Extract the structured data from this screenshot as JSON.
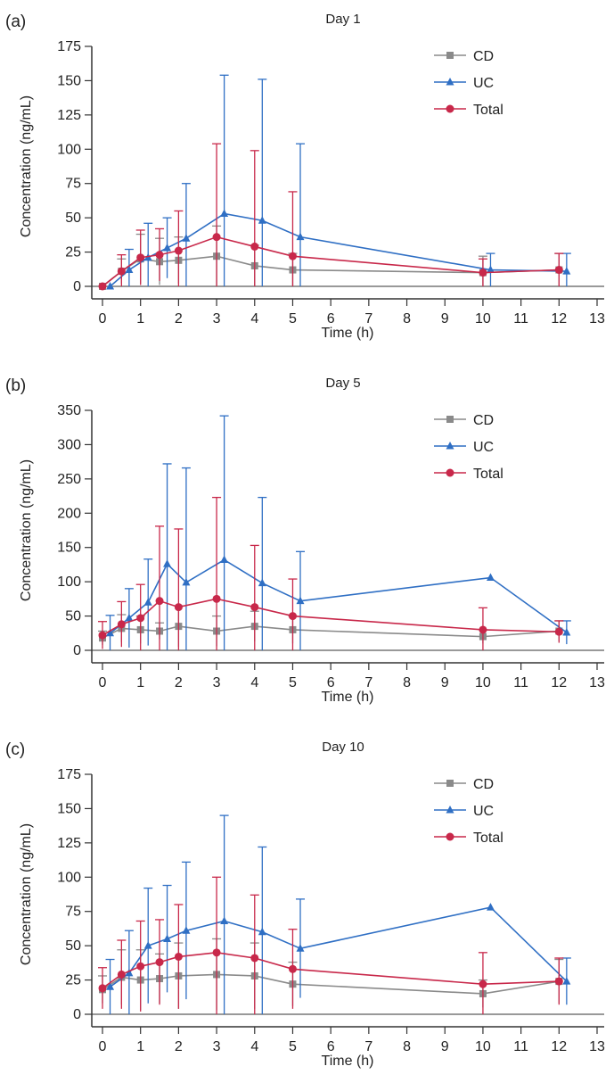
{
  "colors": {
    "CD": "#8a8a8a",
    "UC": "#2f6fc4",
    "Total": "#c8284a",
    "axis": "#333333"
  },
  "chart_data": [
    {
      "type": "line",
      "panel_label": "(a)",
      "title": "Day 1",
      "xlabel": "Time (h)",
      "ylabel": "Concentration (ng/mL)",
      "xlim": [
        -0.3,
        13.5
      ],
      "ylim": [
        0,
        175
      ],
      "xticks": [
        0,
        1,
        2,
        3,
        4,
        5,
        6,
        7,
        8,
        9,
        10,
        11,
        12,
        13
      ],
      "yticks": [
        0,
        25,
        50,
        75,
        100,
        125,
        150,
        175
      ],
      "legend_position": "top-right",
      "series": [
        {
          "name": "CD",
          "marker": "square",
          "x": [
            0,
            0.5,
            1,
            1.5,
            2,
            3,
            4,
            5,
            10,
            12
          ],
          "y": [
            0,
            11,
            20,
            18,
            19,
            22,
            15,
            12,
            10,
            12
          ],
          "err": [
            0,
            9,
            18,
            17,
            17,
            22,
            15,
            12,
            12,
            12
          ]
        },
        {
          "name": "UC",
          "marker": "triangle",
          "x": [
            0.2,
            0.7,
            1.2,
            1.7,
            2.2,
            3.2,
            4.2,
            5.2,
            10.2,
            12.2
          ],
          "y": [
            0,
            12,
            21,
            28,
            35,
            53,
            48,
            36,
            12,
            11
          ],
          "err": [
            0,
            15,
            25,
            22,
            40,
            101,
            103,
            68,
            12,
            13
          ]
        },
        {
          "name": "Total",
          "marker": "circle",
          "x": [
            0,
            0.5,
            1,
            1.5,
            2,
            3,
            4,
            5,
            10,
            12
          ],
          "y": [
            0,
            11,
            21,
            23,
            26,
            36,
            29,
            22,
            10,
            12
          ],
          "err": [
            0,
            12,
            20,
            19,
            29,
            68,
            70,
            47,
            10,
            12
          ]
        }
      ]
    },
    {
      "type": "line",
      "panel_label": "(b)",
      "title": "Day 5",
      "xlabel": "Time (h)",
      "ylabel": "Concentration (ng/mL)",
      "xlim": [
        -0.3,
        13.5
      ],
      "ylim": [
        0,
        350
      ],
      "xticks": [
        0,
        1,
        2,
        3,
        4,
        5,
        6,
        7,
        8,
        9,
        10,
        11,
        12,
        13
      ],
      "yticks": [
        0,
        50,
        100,
        150,
        200,
        250,
        300,
        350
      ],
      "legend_position": "top-right",
      "series": [
        {
          "name": "CD",
          "marker": "square",
          "x": [
            0,
            0.5,
            1,
            1.5,
            2,
            3,
            4,
            5,
            10,
            12
          ],
          "y": [
            18,
            32,
            30,
            28,
            35,
            28,
            35,
            30,
            20,
            28
          ],
          "err": [
            10,
            20,
            20,
            12,
            30,
            22,
            22,
            20,
            10,
            15
          ]
        },
        {
          "name": "UC",
          "marker": "triangle",
          "x": [
            0.2,
            0.7,
            1.2,
            1.7,
            2.2,
            3.2,
            4.2,
            5.2,
            10.2,
            12.2
          ],
          "y": [
            25,
            47,
            70,
            126,
            99,
            132,
            98,
            72,
            106,
            26
          ],
          "err": [
            26,
            43,
            63,
            146,
            167,
            210,
            125,
            72,
            0,
            17
          ]
        },
        {
          "name": "Total",
          "marker": "circle",
          "x": [
            0,
            0.5,
            1,
            1.5,
            2,
            3,
            4,
            5,
            10,
            12
          ],
          "y": [
            22,
            38,
            47,
            72,
            63,
            75,
            63,
            50,
            30,
            27
          ],
          "err": [
            20,
            33,
            49,
            109,
            114,
            148,
            90,
            54,
            32,
            16
          ]
        }
      ]
    },
    {
      "type": "line",
      "panel_label": "(c)",
      "title": "Day 10",
      "xlabel": "Time (h)",
      "ylabel": "Concentration (ng/mL)",
      "xlim": [
        -0.3,
        13.5
      ],
      "ylim": [
        0,
        175
      ],
      "xticks": [
        0,
        1,
        2,
        3,
        4,
        5,
        6,
        7,
        8,
        9,
        10,
        11,
        12,
        13
      ],
      "yticks": [
        0,
        25,
        50,
        75,
        100,
        125,
        150,
        175
      ],
      "legend_position": "top-right",
      "series": [
        {
          "name": "CD",
          "marker": "square",
          "x": [
            0,
            0.5,
            1,
            1.5,
            2,
            3,
            4,
            5,
            10,
            12
          ],
          "y": [
            18,
            27,
            25,
            26,
            28,
            29,
            28,
            22,
            15,
            24
          ],
          "err": [
            10,
            20,
            22,
            18,
            24,
            26,
            24,
            16,
            10,
            16
          ]
        },
        {
          "name": "UC",
          "marker": "triangle",
          "x": [
            0.2,
            0.7,
            1.2,
            1.7,
            2.2,
            3.2,
            4.2,
            5.2,
            10.2,
            12.2
          ],
          "y": [
            20,
            30,
            50,
            55,
            61,
            68,
            60,
            48,
            78,
            24
          ],
          "err": [
            20,
            31,
            42,
            39,
            50,
            77,
            62,
            36,
            0,
            17
          ]
        },
        {
          "name": "Total",
          "marker": "circle",
          "x": [
            0,
            0.5,
            1,
            1.5,
            2,
            3,
            4,
            5,
            10,
            12
          ],
          "y": [
            19,
            29,
            35,
            38,
            42,
            45,
            41,
            33,
            22,
            24
          ],
          "err": [
            15,
            25,
            33,
            31,
            38,
            55,
            46,
            29,
            23,
            17
          ]
        }
      ]
    }
  ]
}
